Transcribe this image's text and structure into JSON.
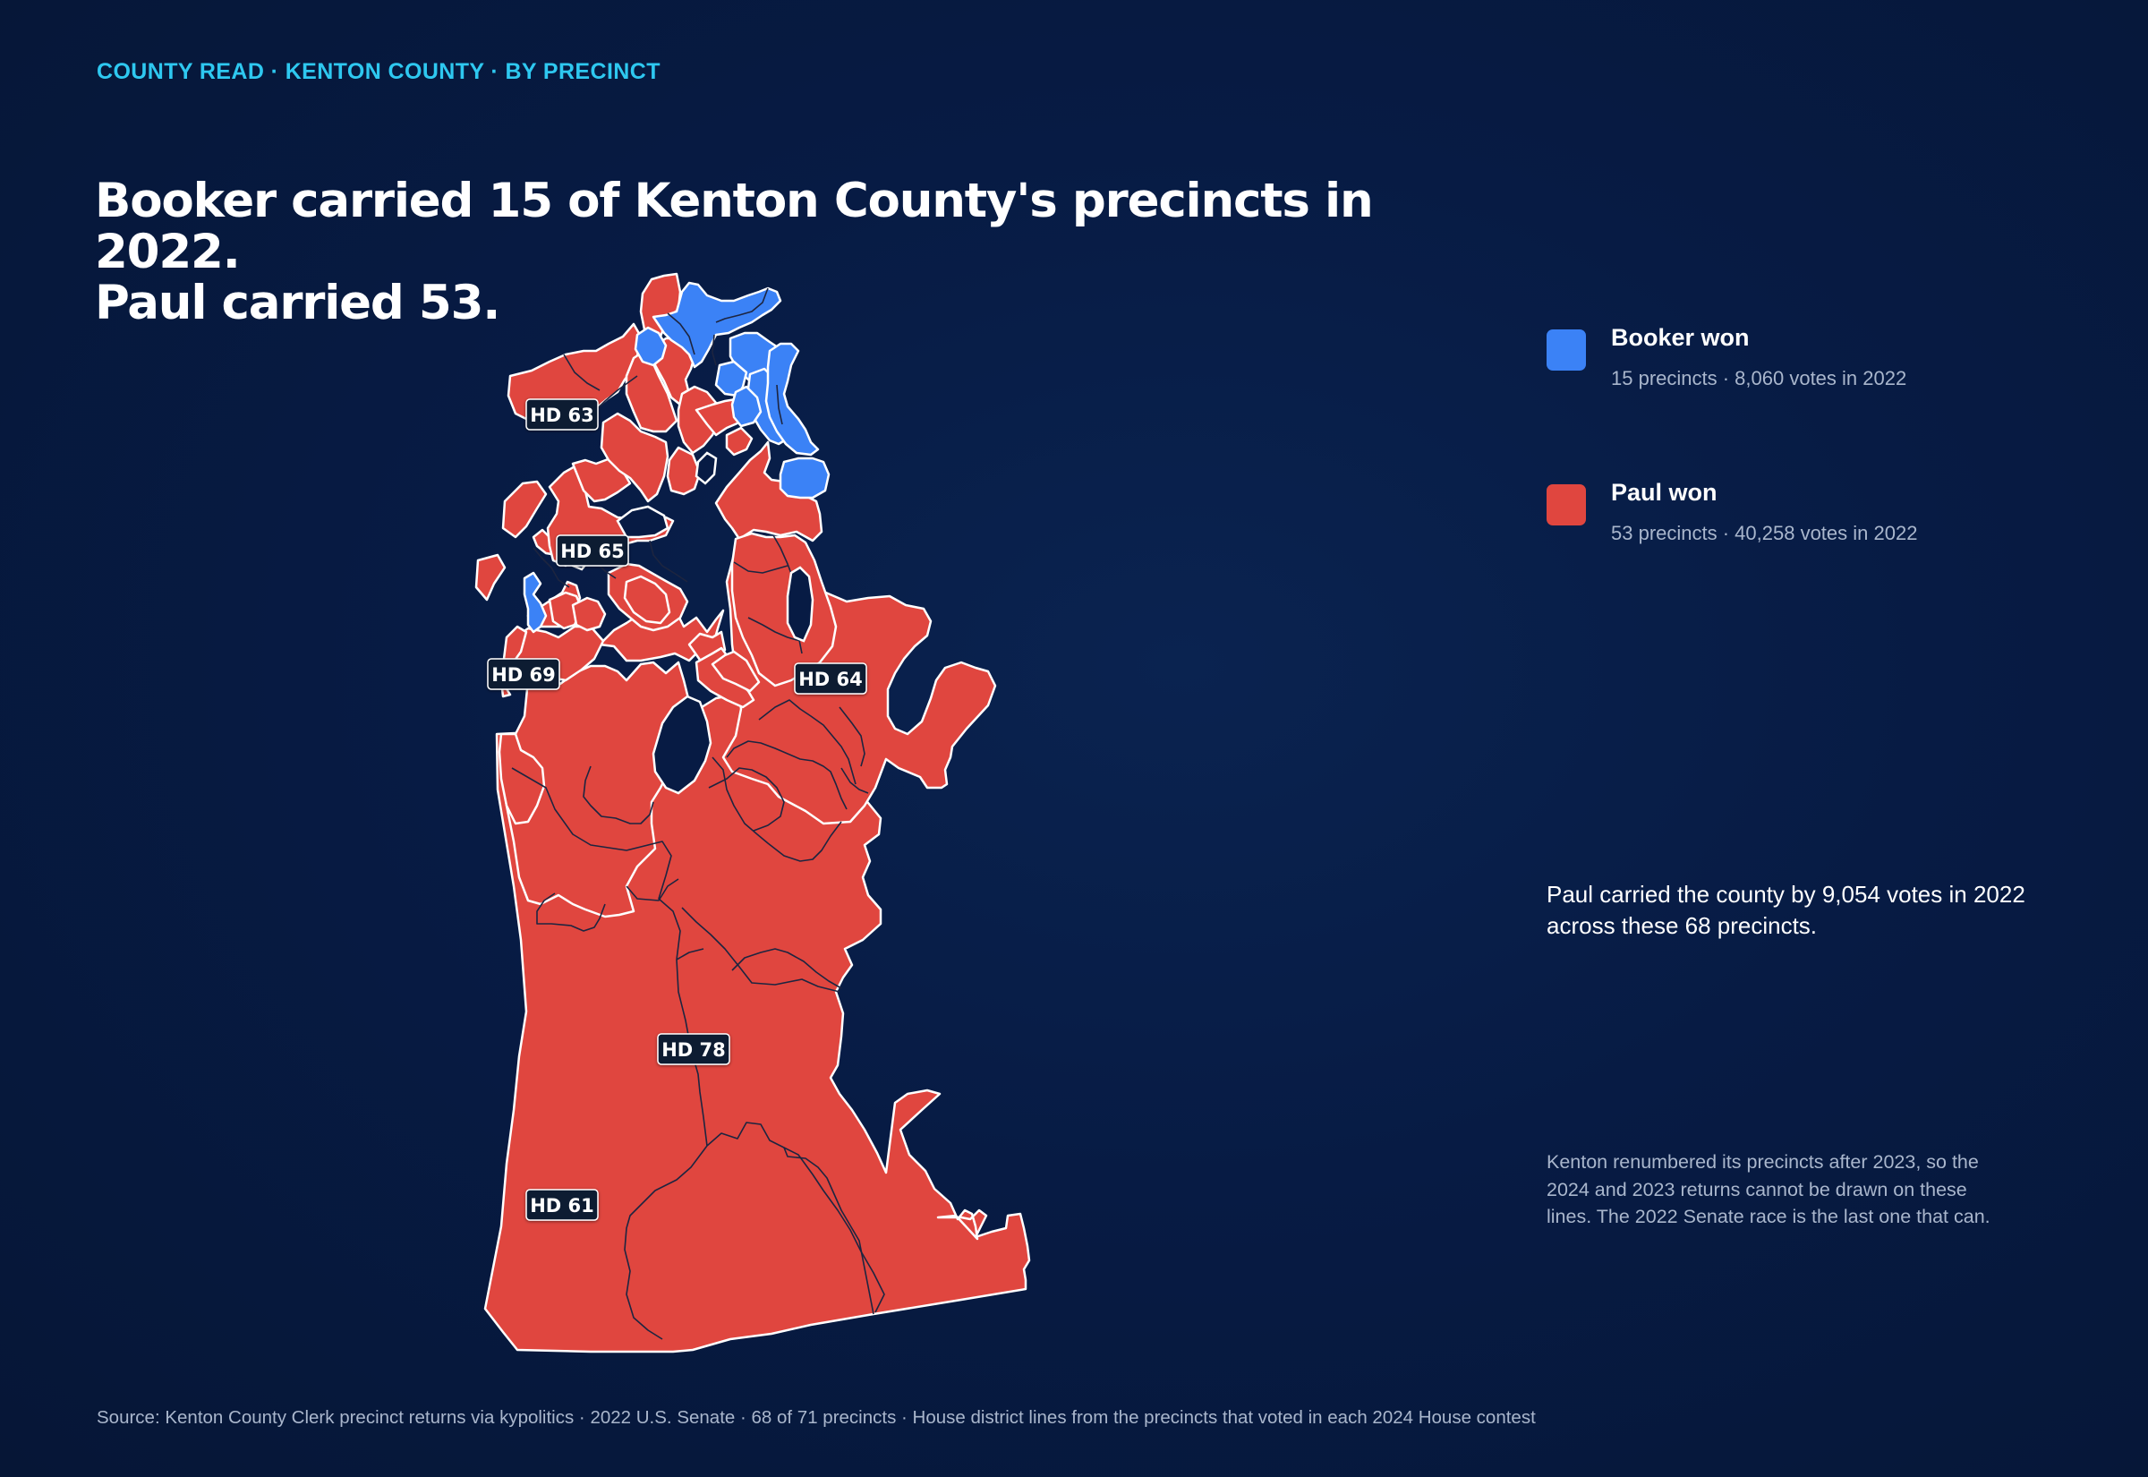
{
  "kicker": "COUNTY READ · KENTON COUNTY · BY PRECINCT",
  "headline": {
    "line1": "Booker carried 15 of Kenton County's precincts in 2022.",
    "line2": "Paul carried 53."
  },
  "colors": {
    "booker": "#3b82f6",
    "paul": "#e0463f",
    "background": "#071b44",
    "kicker": "#2ec8f0"
  },
  "legend": [
    {
      "title": "Booker won",
      "subtitle": "15 precincts · 8,060 votes in 2022",
      "color": "#3b82f6"
    },
    {
      "title": "Paul won",
      "subtitle": "53 precincts · 40,258 votes in 2022",
      "color": "#e0463f"
    }
  ],
  "map": {
    "districts": [
      "HD 63",
      "HD 65",
      "HD 69",
      "HD 64",
      "HD 78",
      "HD 61"
    ]
  },
  "notes": {
    "main": "Paul carried the county by 9,054 votes in 2022 across these 68 precincts.",
    "small": "Kenton renumbered its precincts after 2023, so the 2024 and 2023 returns cannot be drawn on these lines. The 2022 Senate race is the last one that can."
  },
  "source": "Source: Kenton County Clerk precinct returns via kypolitics · 2022 U.S. Senate · 68 of 71 precincts · House district lines from the precincts that voted in each 2024 House contest"
}
